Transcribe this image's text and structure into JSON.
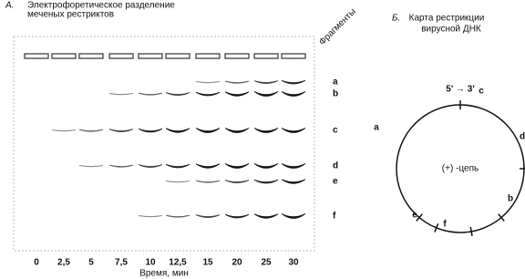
{
  "panel_a": {
    "letter": "А.",
    "title": [
      "Электрофоретическое разделение",
      "меченых рестриктов"
    ],
    "fragments_label": "Фрагменты",
    "fragments": [
      "a",
      "b",
      "c",
      "d",
      "e",
      "f"
    ],
    "times": [
      "0",
      "2,5",
      "5",
      "7,5",
      "10",
      "12,5",
      "15",
      "20",
      "25",
      "30"
    ],
    "x_label": "Время, мин"
  },
  "panel_b": {
    "letter": "Б.",
    "title": [
      "Карта рестрикции",
      "вирусной ДНК"
    ],
    "direction": "5' → 3'",
    "strand": "(+) -цепь",
    "segments": [
      "a",
      "b",
      "c",
      "d",
      "e",
      "f"
    ]
  }
}
